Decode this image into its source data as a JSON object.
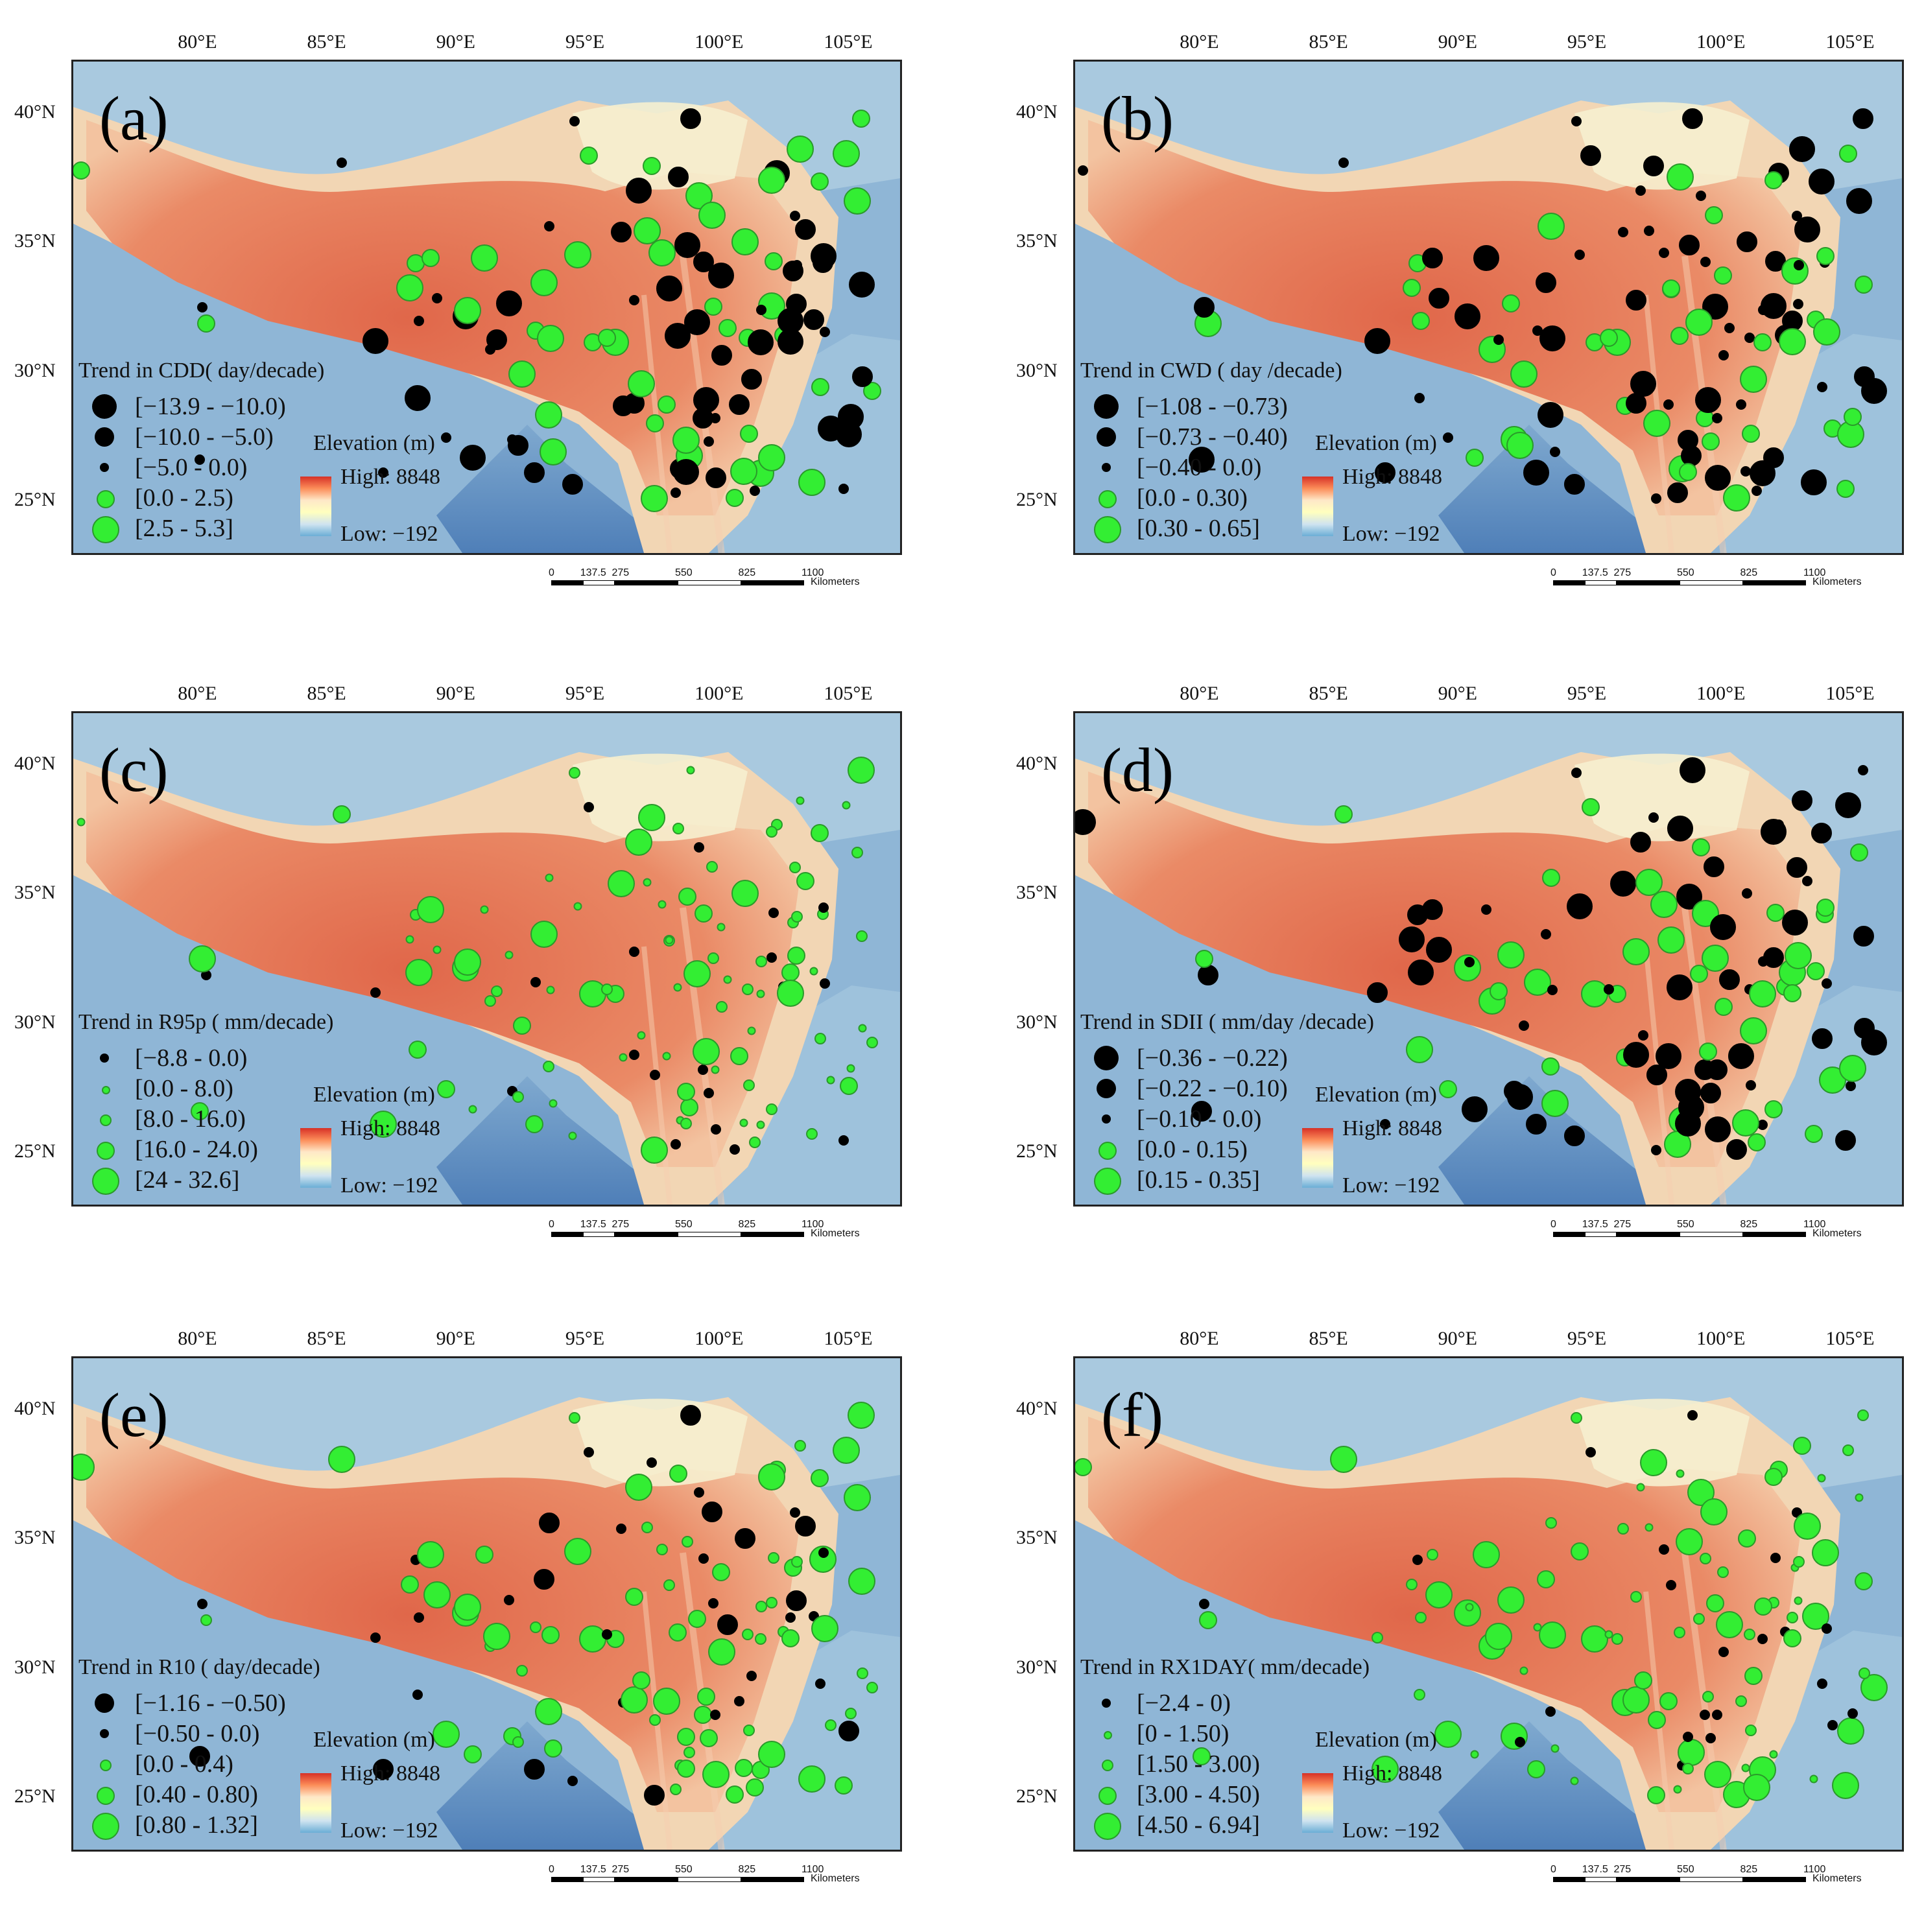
{
  "map_common": {
    "lon_ticks": [
      "80°E",
      "85°E",
      "90°E",
      "95°E",
      "100°E",
      "105°E"
    ],
    "lat_ticks": [
      "40°N",
      "35°N",
      "30°N",
      "25°N"
    ],
    "elevation_title": "Elevation (m)",
    "elevation_high": "High: 8848",
    "elevation_low": "Low: −192",
    "scale_labels": [
      "0",
      "137.5",
      "275",
      "550",
      "825",
      "1100"
    ],
    "scale_unit": "Kilometers",
    "colors": {
      "increase": "#33ee33",
      "decrease": "#000000"
    }
  },
  "panels": [
    {
      "label": "(a)",
      "legend_title": "Trend  in CDD( day/decade)",
      "legend_items": [
        "[−13.9 - −10.0)",
        "[−10.0 - −5.0)",
        "[−5.0 - 0.0)",
        "[0.0 - 2.5)",
        "[2.5 - 5.3]"
      ],
      "item_kind": [
        "neg",
        "neg",
        "neg",
        "pos",
        "pos"
      ],
      "item_size": [
        5,
        4,
        2,
        3,
        5
      ]
    },
    {
      "label": "(b)",
      "legend_title": "Trend  in CWD ( day /decade)",
      "legend_items": [
        "[−1.08 - −0.73)",
        "[−0.73 - −0.40)",
        "[−0.40 - 0.0)",
        "[0.0 - 0.30)",
        "[0.30 - 0.65]"
      ],
      "item_kind": [
        "neg",
        "neg",
        "neg",
        "pos",
        "pos"
      ],
      "item_size": [
        5,
        4,
        2,
        3,
        5
      ]
    },
    {
      "label": "(c)",
      "legend_title": "Trend  in R95p ( mm/decade)",
      "legend_items": [
        "[−8.8 - 0.0)",
        "[0.0 - 8.0)",
        "[8.0 - 16.0)",
        "[16.0 - 24.0)",
        "[24 - 32.6]"
      ],
      "item_kind": [
        "neg",
        "pos",
        "pos",
        "pos",
        "pos"
      ],
      "item_size": [
        2,
        1,
        2,
        3,
        5
      ]
    },
    {
      "label": "(d)",
      "legend_title": "Trend  in SDII ( mm/day /decade)",
      "legend_items": [
        "[−0.36 - −0.22)",
        "[−0.22 - −0.10)",
        "[−0.10 - 0.0)",
        "[0.0 - 0.15)",
        "[0.15 - 0.35]"
      ],
      "item_kind": [
        "neg",
        "neg",
        "neg",
        "pos",
        "pos"
      ],
      "item_size": [
        5,
        4,
        2,
        3,
        5
      ]
    },
    {
      "label": "(e)",
      "legend_title": "Trend  in R10 ( day/decade)",
      "legend_items": [
        "[−1.16 - −0.50)",
        "[−0.50 - 0.0)",
        "[0.0 - 0.4)",
        "[0.40 - 0.80)",
        "[0.80 - 1.32]"
      ],
      "item_kind": [
        "neg",
        "neg",
        "pos",
        "pos",
        "pos"
      ],
      "item_size": [
        4,
        2,
        2,
        3,
        5
      ]
    },
    {
      "label": "(f)",
      "legend_title": "Trend  in RX1DAY( mm/decade)",
      "legend_items": [
        "[−2.4 - 0)",
        "[0 - 1.50)",
        "[1.50 - 3.00)",
        "[3.00 - 4.50)",
        "[4.50 - 6.94]"
      ],
      "item_kind": [
        "neg",
        "pos",
        "pos",
        "pos",
        "pos"
      ],
      "item_size": [
        2,
        1,
        2,
        3,
        5
      ]
    }
  ]
}
